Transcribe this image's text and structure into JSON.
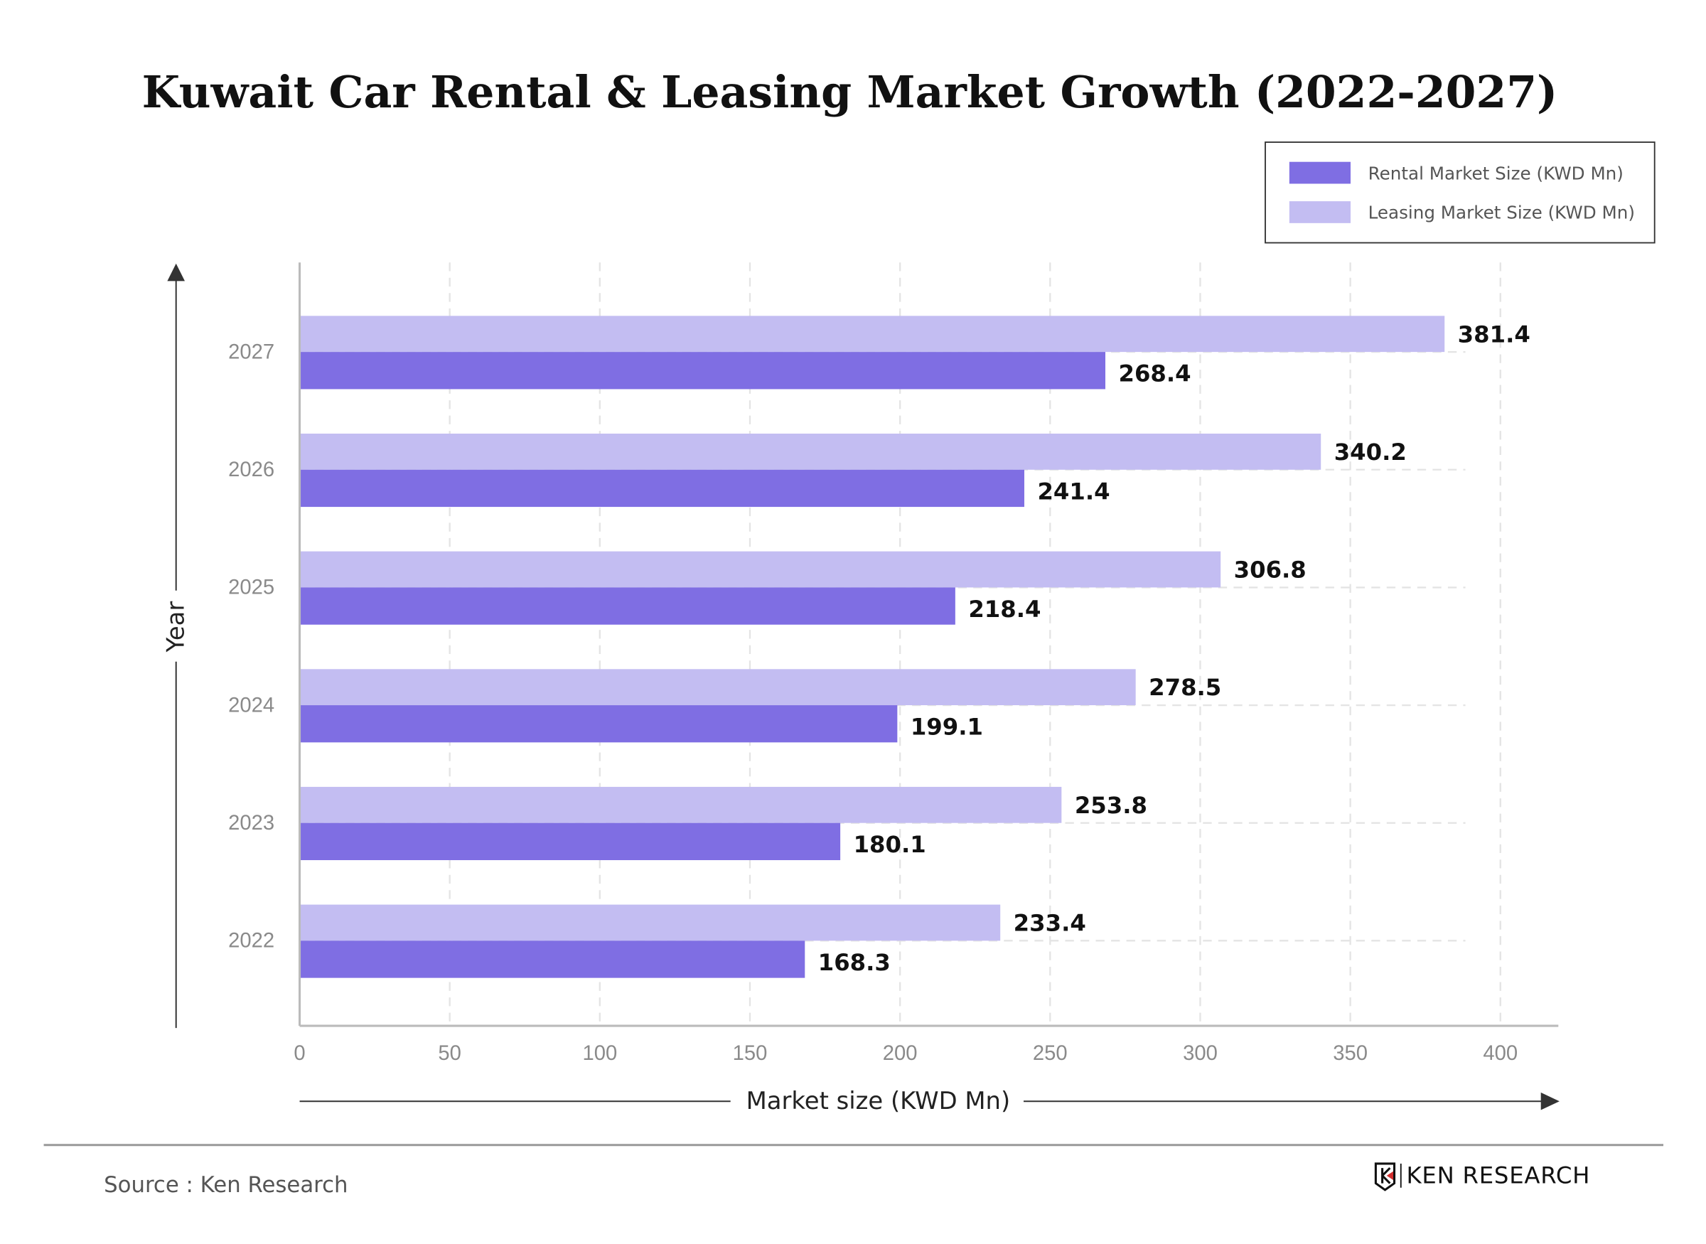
{
  "chart_data": {
    "type": "bar",
    "orientation": "horizontal",
    "title": "Kuwait Car Rental & Leasing Market Growth (2022-2027)",
    "xlabel": "Market size (KWD Mn)",
    "ylabel": "Year",
    "categories": [
      "2022",
      "2023",
      "2024",
      "2025",
      "2026",
      "2027"
    ],
    "series": [
      {
        "name": "Rental Market Size (KWD Mn)",
        "color": "#7f6ee3",
        "values": [
          168.3,
          180.1,
          199.1,
          218.4,
          241.4,
          268.4
        ]
      },
      {
        "name": "Leasing Market Size (KWD Mn)",
        "color": "#c3bdf2",
        "values": [
          233.4,
          253.8,
          278.5,
          306.8,
          340.2,
          381.4
        ]
      }
    ],
    "xlim": [
      0,
      420
    ],
    "xticks": [
      "0",
      "50",
      "100",
      "150",
      "200",
      "250",
      "300",
      "350",
      "400"
    ],
    "grid": true,
    "legend_position": "top-right"
  },
  "footer": {
    "source": "Source : Ken Research",
    "logo_text": "KEN RESEARCH"
  }
}
